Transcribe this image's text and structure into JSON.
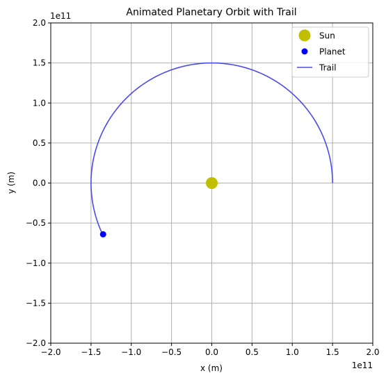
{
  "chart_data": {
    "type": "scatter",
    "title": "Animated Planetary Orbit with Trail",
    "xlabel": "x (m)",
    "ylabel": "y (m)",
    "x_offset_label": "1e11",
    "y_offset_label": "1e11",
    "xlim": [
      -2.0,
      2.0
    ],
    "ylim": [
      -2.0,
      2.0
    ],
    "x_ticks": [
      -2.0,
      -1.5,
      -1.0,
      -0.5,
      0.0,
      0.5,
      1.0,
      1.5,
      2.0
    ],
    "y_ticks": [
      -2.0,
      -1.5,
      -1.0,
      -0.5,
      0.0,
      0.5,
      1.0,
      1.5,
      2.0
    ],
    "x_tick_labels": [
      "−2.0",
      "−1.5",
      "−1.0",
      "−0.5",
      "0.0",
      "0.5",
      "1.0",
      "1.5",
      "2.0"
    ],
    "y_tick_labels": [
      "−2.0",
      "−1.5",
      "−1.0",
      "−0.5",
      "0.0",
      "0.5",
      "1.0",
      "1.5",
      "2.0"
    ],
    "grid": true,
    "legend_position": "top-right",
    "series": [
      {
        "name": "Sun",
        "kind": "marker",
        "color": "#bfbf00",
        "points": [
          [
            0.0,
            0.0
          ]
        ]
      },
      {
        "name": "Planet",
        "kind": "marker",
        "color": "#0000ff",
        "points": [
          [
            -1.35,
            -0.64
          ]
        ]
      },
      {
        "name": "Trail",
        "kind": "line",
        "color": "#4a4af0",
        "orbit_radius": 1.5,
        "start_angle_deg": 0,
        "end_angle_deg": 205.5
      }
    ]
  }
}
